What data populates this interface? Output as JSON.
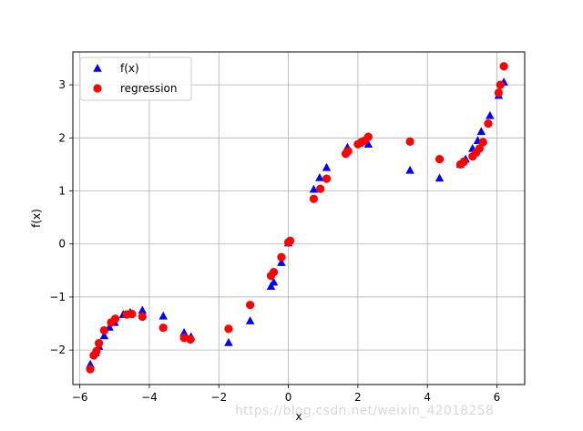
{
  "chart_data": {
    "type": "scatter",
    "title": "",
    "xlabel": "x",
    "ylabel": "f(x)",
    "xlim": [
      -6.2,
      6.8
    ],
    "ylim": [
      -2.65,
      3.62
    ],
    "x_ticks": [
      -6,
      -4,
      -2,
      0,
      2,
      4,
      6
    ],
    "y_ticks": [
      -2,
      -1,
      0,
      1,
      2,
      3
    ],
    "grid": true,
    "legend_position": "top-left",
    "series": [
      {
        "name": "f(x)",
        "marker": "triangle",
        "color": "#0000ff",
        "points": [
          {
            "x": -5.7,
            "y": -2.27
          },
          {
            "x": -5.55,
            "y": -2.05
          },
          {
            "x": -5.45,
            "y": -1.93
          },
          {
            "x": -5.3,
            "y": -1.73
          },
          {
            "x": -5.15,
            "y": -1.57
          },
          {
            "x": -5.0,
            "y": -1.48
          },
          {
            "x": -4.75,
            "y": -1.33
          },
          {
            "x": -4.55,
            "y": -1.29
          },
          {
            "x": -4.2,
            "y": -1.25
          },
          {
            "x": -3.6,
            "y": -1.36
          },
          {
            "x": -3.0,
            "y": -1.67
          },
          {
            "x": -2.8,
            "y": -1.75
          },
          {
            "x": -1.72,
            "y": -1.86
          },
          {
            "x": -1.1,
            "y": -1.45
          },
          {
            "x": -0.5,
            "y": -0.8
          },
          {
            "x": -0.42,
            "y": -0.72
          },
          {
            "x": -0.2,
            "y": -0.35
          },
          {
            "x": 0.0,
            "y": 0.02
          },
          {
            "x": 0.73,
            "y": 1.03
          },
          {
            "x": 0.9,
            "y": 1.25
          },
          {
            "x": 1.1,
            "y": 1.44
          },
          {
            "x": 1.7,
            "y": 1.82
          },
          {
            "x": 2.05,
            "y": 1.9
          },
          {
            "x": 2.3,
            "y": 1.88
          },
          {
            "x": 3.5,
            "y": 1.39
          },
          {
            "x": 4.35,
            "y": 1.24
          },
          {
            "x": 4.95,
            "y": 1.5
          },
          {
            "x": 5.1,
            "y": 1.6
          },
          {
            "x": 5.3,
            "y": 1.8
          },
          {
            "x": 5.45,
            "y": 1.95
          },
          {
            "x": 5.55,
            "y": 2.12
          },
          {
            "x": 5.8,
            "y": 2.42
          },
          {
            "x": 6.05,
            "y": 2.8
          },
          {
            "x": 6.2,
            "y": 3.05
          }
        ]
      },
      {
        "name": "regression",
        "marker": "circle",
        "color": "#ff0000",
        "points": [
          {
            "x": -5.7,
            "y": -2.36
          },
          {
            "x": -5.6,
            "y": -2.1
          },
          {
            "x": -5.52,
            "y": -2.02
          },
          {
            "x": -5.45,
            "y": -1.87
          },
          {
            "x": -5.3,
            "y": -1.63
          },
          {
            "x": -5.1,
            "y": -1.48
          },
          {
            "x": -4.98,
            "y": -1.41
          },
          {
            "x": -4.65,
            "y": -1.33
          },
          {
            "x": -4.5,
            "y": -1.32
          },
          {
            "x": -4.2,
            "y": -1.37
          },
          {
            "x": -3.6,
            "y": -1.58
          },
          {
            "x": -3.0,
            "y": -1.77
          },
          {
            "x": -2.82,
            "y": -1.8
          },
          {
            "x": -1.72,
            "y": -1.6
          },
          {
            "x": -1.1,
            "y": -1.15
          },
          {
            "x": -0.5,
            "y": -0.6
          },
          {
            "x": -0.42,
            "y": -0.53
          },
          {
            "x": -0.2,
            "y": -0.25
          },
          {
            "x": 0.0,
            "y": 0.03
          },
          {
            "x": 0.05,
            "y": 0.06
          },
          {
            "x": 0.73,
            "y": 0.85
          },
          {
            "x": 0.92,
            "y": 1.04
          },
          {
            "x": 1.1,
            "y": 1.23
          },
          {
            "x": 1.65,
            "y": 1.7
          },
          {
            "x": 1.72,
            "y": 1.75
          },
          {
            "x": 2.0,
            "y": 1.88
          },
          {
            "x": 2.1,
            "y": 1.92
          },
          {
            "x": 2.2,
            "y": 1.95
          },
          {
            "x": 2.3,
            "y": 2.02
          },
          {
            "x": 3.5,
            "y": 1.93
          },
          {
            "x": 4.35,
            "y": 1.6
          },
          {
            "x": 4.95,
            "y": 1.5
          },
          {
            "x": 5.05,
            "y": 1.55
          },
          {
            "x": 5.3,
            "y": 1.65
          },
          {
            "x": 5.4,
            "y": 1.72
          },
          {
            "x": 5.5,
            "y": 1.8
          },
          {
            "x": 5.6,
            "y": 1.92
          },
          {
            "x": 5.75,
            "y": 2.27
          },
          {
            "x": 6.05,
            "y": 2.85
          },
          {
            "x": 6.1,
            "y": 3.0
          },
          {
            "x": 6.2,
            "y": 3.35
          }
        ]
      }
    ]
  },
  "watermark": "https://blog.csdn.net/weixin_42018258"
}
